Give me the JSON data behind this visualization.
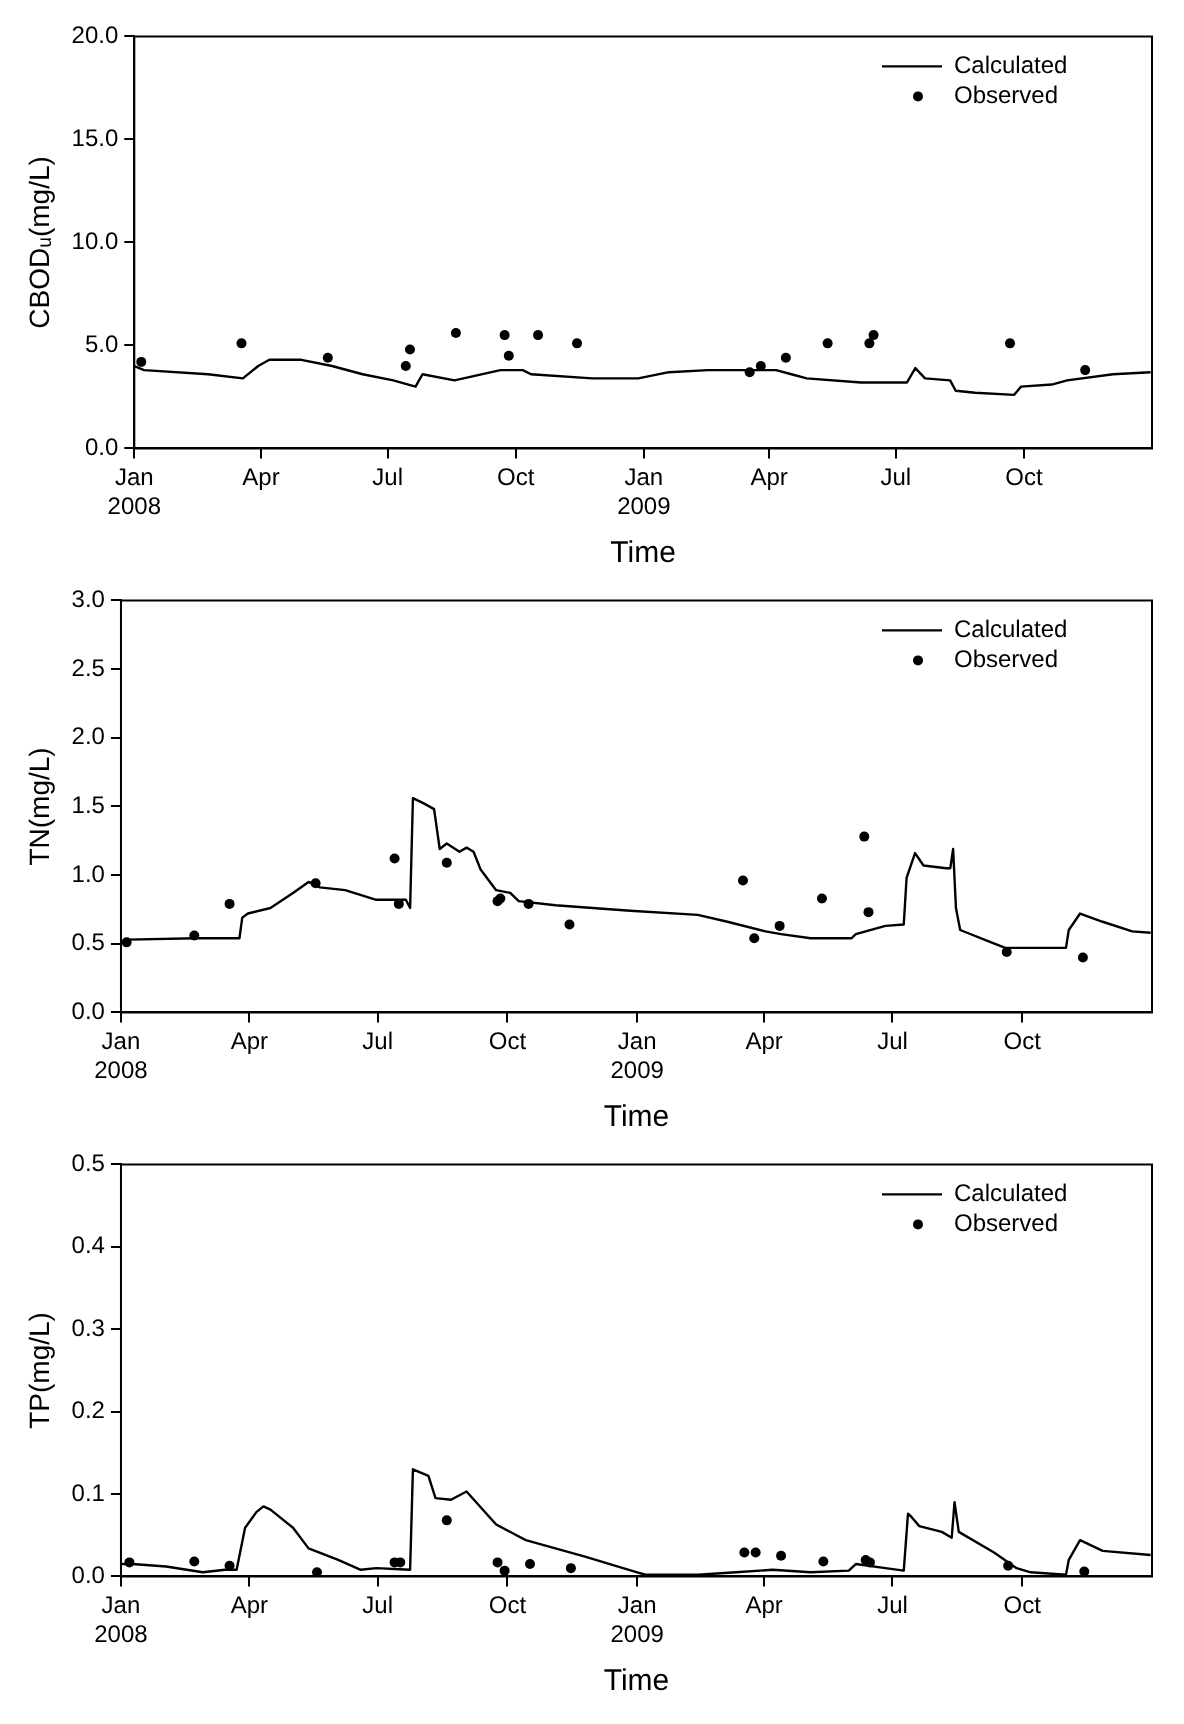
{
  "chart_data": [
    {
      "type": "line",
      "xlabel": "Time",
      "ylabel": "CBODᵤ(mg/L)",
      "xlim": [
        "2008-01-01",
        "2010-01-01"
      ],
      "xticks": [
        {
          "value": "2008-01-01",
          "label": "Jan 2008"
        },
        {
          "value": "2008-04-01",
          "label": "Apr"
        },
        {
          "value": "2008-07-01",
          "label": "Jul"
        },
        {
          "value": "2008-10-01",
          "label": "Oct"
        },
        {
          "value": "2009-01-01",
          "label": "Jan 2009"
        },
        {
          "value": "2009-04-01",
          "label": "Apr"
        },
        {
          "value": "2009-07-01",
          "label": "Jul"
        },
        {
          "value": "2009-10-01",
          "label": "Oct"
        }
      ],
      "ylim": [
        0,
        20
      ],
      "yticks": [
        {
          "value": 0,
          "label": "0.0"
        },
        {
          "value": 5,
          "label": "5.0"
        },
        {
          "value": 10,
          "label": "10.0"
        },
        {
          "value": 15,
          "label": "15.0"
        },
        {
          "value": 20,
          "label": "20.0"
        }
      ],
      "grid": false,
      "legend": "top right",
      "series": [
        {
          "name": "Calculated",
          "type": "line",
          "color": "#000000",
          "marker": "none",
          "x": [
            "2008-01-01",
            "2008-01-08",
            "2008-02-23",
            "2008-03-19",
            "2008-03-30",
            "2008-04-07",
            "2008-04-30",
            "2008-05-22",
            "2008-06-13",
            "2008-07-05",
            "2008-07-21",
            "2008-07-26",
            "2008-08-18",
            "2008-09-20",
            "2008-10-06",
            "2008-10-12",
            "2008-11-25",
            "2008-12-28",
            "2009-01-19",
            "2009-02-16",
            "2009-03-15",
            "2009-04-06",
            "2009-04-17",
            "2009-04-28",
            "2009-06-06",
            "2009-07-09",
            "2009-07-15",
            "2009-07-22",
            "2009-08-09",
            "2009-08-13",
            "2009-08-27",
            "2009-09-24",
            "2009-09-29",
            "2009-10-21",
            "2009-11-01",
            "2009-12-04",
            "2009-12-31"
          ],
          "values": [
            4.0,
            3.8,
            3.6,
            3.4,
            4.0,
            4.3,
            4.3,
            4.0,
            3.6,
            3.3,
            3.0,
            3.6,
            3.3,
            3.8,
            3.8,
            3.6,
            3.4,
            3.4,
            3.7,
            3.8,
            3.8,
            3.8,
            3.6,
            3.4,
            3.2,
            3.2,
            3.9,
            3.4,
            3.3,
            2.8,
            2.7,
            2.6,
            3.0,
            3.1,
            3.3,
            3.6,
            3.7
          ]
        },
        {
          "name": "Observed",
          "type": "scatter",
          "color": "#000000",
          "marker": "circle",
          "x": [
            "2008-01-06",
            "2008-03-18",
            "2008-05-19",
            "2008-07-14",
            "2008-07-17",
            "2008-08-19",
            "2008-09-23",
            "2008-09-26",
            "2008-10-17",
            "2008-11-14",
            "2009-03-18",
            "2009-03-26",
            "2009-04-13",
            "2009-05-13",
            "2009-06-12",
            "2009-06-15",
            "2009-09-21",
            "2009-11-14"
          ],
          "values": [
            4.2,
            5.1,
            4.4,
            4.0,
            4.8,
            5.6,
            5.5,
            4.5,
            5.5,
            5.1,
            3.7,
            4.0,
            4.4,
            5.1,
            5.1,
            5.5,
            5.1,
            3.8
          ]
        }
      ]
    },
    {
      "type": "line",
      "xlabel": "Time",
      "ylabel": "TN(mg/L)",
      "xlim": [
        "2008-01-01",
        "2010-01-01"
      ],
      "xticks": [
        {
          "value": "2008-01-01",
          "label": "Jan 2008"
        },
        {
          "value": "2008-04-01",
          "label": "Apr"
        },
        {
          "value": "2008-07-01",
          "label": "Jul"
        },
        {
          "value": "2008-10-01",
          "label": "Oct"
        },
        {
          "value": "2009-01-01",
          "label": "Jan 2009"
        },
        {
          "value": "2009-04-01",
          "label": "Apr"
        },
        {
          "value": "2009-07-01",
          "label": "Jul"
        },
        {
          "value": "2009-10-01",
          "label": "Oct"
        }
      ],
      "ylim": [
        0,
        3
      ],
      "yticks": [
        {
          "value": 0,
          "label": "0.0"
        },
        {
          "value": 0.5,
          "label": "0.5"
        },
        {
          "value": 1,
          "label": "1.0"
        },
        {
          "value": 1.5,
          "label": "1.5"
        },
        {
          "value": 2,
          "label": "2.0"
        },
        {
          "value": 2.5,
          "label": "2.5"
        },
        {
          "value": 3,
          "label": "3.0"
        }
      ],
      "grid": false,
      "legend": "top right",
      "series": [
        {
          "name": "Calculated",
          "type": "line",
          "color": "#000000",
          "marker": "none",
          "x": [
            "2008-01-01",
            "2008-01-06",
            "2008-02-23",
            "2008-03-25",
            "2008-03-27",
            "2008-03-31",
            "2008-04-16",
            "2008-05-02",
            "2008-05-13",
            "2008-05-21",
            "2008-06-08",
            "2008-06-30",
            "2008-07-21",
            "2008-07-24",
            "2008-07-26",
            "2008-08-03",
            "2008-08-10",
            "2008-08-14",
            "2008-08-19",
            "2008-08-28",
            "2008-09-02",
            "2008-09-07",
            "2008-09-12",
            "2008-09-23",
            "2008-10-03",
            "2008-10-09",
            "2008-11-04",
            "2008-12-27",
            "2009-02-13",
            "2009-03-06",
            "2009-04-02",
            "2009-04-13",
            "2009-05-04",
            "2009-06-02",
            "2009-06-05",
            "2009-06-26",
            "2009-07-09",
            "2009-07-11",
            "2009-07-17",
            "2009-07-23",
            "2009-08-08",
            "2009-08-11",
            "2009-08-13",
            "2009-08-15",
            "2009-08-18",
            "2009-09-09",
            "2009-09-19",
            "2009-11-01",
            "2009-11-03",
            "2009-11-11",
            "2009-11-27",
            "2009-12-18",
            "2009-12-31"
          ],
          "values": [
            0.51,
            0.53,
            0.54,
            0.54,
            0.69,
            0.72,
            0.76,
            0.87,
            0.95,
            0.91,
            0.89,
            0.82,
            0.82,
            0.76,
            1.56,
            1.52,
            1.48,
            1.19,
            1.23,
            1.17,
            1.2,
            1.17,
            1.04,
            0.89,
            0.87,
            0.81,
            0.78,
            0.74,
            0.71,
            0.66,
            0.59,
            0.57,
            0.54,
            0.54,
            0.57,
            0.63,
            0.64,
            0.98,
            1.16,
            1.07,
            1.05,
            1.05,
            1.19,
            0.76,
            0.6,
            0.51,
            0.47,
            0.47,
            0.6,
            0.72,
            0.66,
            0.59,
            0.58
          ]
        },
        {
          "name": "Observed",
          "type": "scatter",
          "color": "#000000",
          "marker": "circle",
          "x": [
            "2008-01-05",
            "2008-02-22",
            "2008-03-18",
            "2008-05-18",
            "2008-07-13",
            "2008-07-16",
            "2008-08-19",
            "2008-09-24",
            "2008-09-26",
            "2008-10-16",
            "2008-11-14",
            "2009-03-17",
            "2009-03-25",
            "2009-04-12",
            "2009-05-12",
            "2009-06-11",
            "2009-06-14",
            "2009-09-20",
            "2009-11-13"
          ],
          "values": [
            0.51,
            0.56,
            0.79,
            0.94,
            1.12,
            0.79,
            1.09,
            0.81,
            0.83,
            0.79,
            0.64,
            0.96,
            0.54,
            0.63,
            0.83,
            1.28,
            0.73,
            0.44,
            0.4
          ]
        }
      ]
    },
    {
      "type": "line",
      "xlabel": "Time",
      "ylabel": "TP(mg/L)",
      "xlim": [
        "2008-01-01",
        "2010-01-01"
      ],
      "xticks": [
        {
          "value": "2008-01-01",
          "label": "Jan 2008"
        },
        {
          "value": "2008-04-01",
          "label": "Apr"
        },
        {
          "value": "2008-07-01",
          "label": "Jul"
        },
        {
          "value": "2008-10-01",
          "label": "Oct"
        },
        {
          "value": "2009-01-01",
          "label": "Jan 2009"
        },
        {
          "value": "2009-04-01",
          "label": "Apr"
        },
        {
          "value": "2009-07-01",
          "label": "Jul"
        },
        {
          "value": "2009-10-01",
          "label": "Oct"
        }
      ],
      "ylim": [
        0,
        0.5
      ],
      "yticks": [
        {
          "value": 0,
          "label": "0.0"
        },
        {
          "value": 0.1,
          "label": "0.1"
        },
        {
          "value": 0.2,
          "label": "0.2"
        },
        {
          "value": 0.3,
          "label": "0.3"
        },
        {
          "value": 0.4,
          "label": "0.4"
        },
        {
          "value": 0.5,
          "label": "0.5"
        }
      ],
      "grid": false,
      "legend": "top right",
      "series": [
        {
          "name": "Calculated",
          "type": "line",
          "color": "#000000",
          "marker": "none",
          "x": [
            "2008-01-01",
            "2008-01-09",
            "2008-02-02",
            "2008-02-28",
            "2008-03-15",
            "2008-03-23",
            "2008-03-29",
            "2008-04-06",
            "2008-04-11",
            "2008-04-16",
            "2008-05-02",
            "2008-05-13",
            "2008-06-03",
            "2008-06-19",
            "2008-06-30",
            "2008-07-24",
            "2008-07-26",
            "2008-08-06",
            "2008-08-11",
            "2008-08-22",
            "2008-09-02",
            "2008-09-23",
            "2008-10-14",
            "2008-11-25",
            "2009-01-01",
            "2009-01-07",
            "2009-02-13",
            "2009-03-12",
            "2009-04-07",
            "2009-05-04",
            "2009-05-31",
            "2009-06-05",
            "2009-06-26",
            "2009-07-09",
            "2009-07-12",
            "2009-07-14",
            "2009-07-20",
            "2009-08-05",
            "2009-08-12",
            "2009-08-14",
            "2009-08-17",
            "2009-09-11",
            "2009-09-27",
            "2009-10-07",
            "2009-11-01",
            "2009-11-03",
            "2009-11-11",
            "2009-11-27",
            "2009-12-31"
          ],
          "values": [
            0.015,
            0.015,
            0.012,
            0.005,
            0.008,
            0.008,
            0.059,
            0.078,
            0.085,
            0.081,
            0.059,
            0.034,
            0.02,
            0.008,
            0.01,
            0.008,
            0.13,
            0.122,
            0.095,
            0.093,
            0.103,
            0.063,
            0.044,
            0.024,
            0.005,
            0.002,
            0.002,
            0.005,
            0.008,
            0.005,
            0.007,
            0.015,
            0.01,
            0.007,
            0.076,
            0.073,
            0.061,
            0.054,
            0.047,
            0.09,
            0.054,
            0.029,
            0.01,
            0.005,
            0.002,
            0.02,
            0.044,
            0.031,
            0.026
          ]
        },
        {
          "name": "Observed",
          "type": "scatter",
          "color": "#000000",
          "marker": "circle",
          "x": [
            "2008-01-07",
            "2008-02-22",
            "2008-03-18",
            "2008-05-19",
            "2008-07-13",
            "2008-07-17",
            "2008-08-19",
            "2008-09-24",
            "2008-09-29",
            "2008-10-17",
            "2008-11-15",
            "2009-03-18",
            "2009-03-26",
            "2009-04-13",
            "2009-05-13",
            "2009-06-12",
            "2009-06-15",
            "2009-09-21",
            "2009-11-14"
          ],
          "values": [
            0.017,
            0.018,
            0.013,
            0.005,
            0.017,
            0.017,
            0.068,
            0.017,
            0.007,
            0.015,
            0.01,
            0.029,
            0.029,
            0.025,
            0.018,
            0.02,
            0.017,
            0.013,
            0.006
          ]
        }
      ]
    }
  ]
}
